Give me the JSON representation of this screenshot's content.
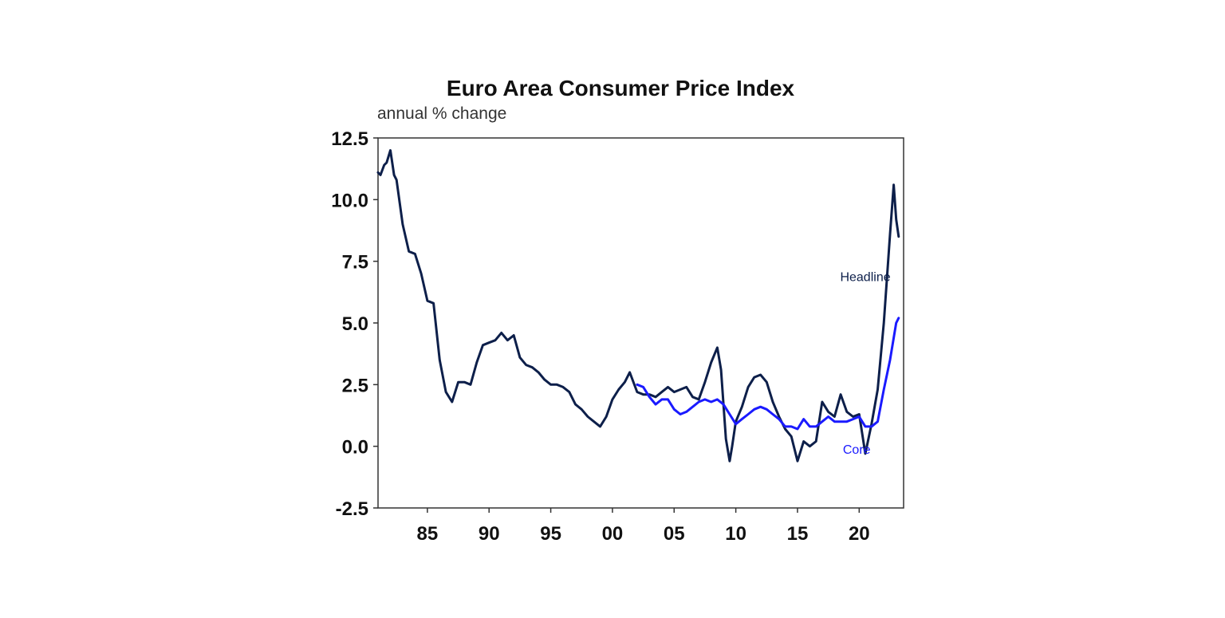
{
  "chart_data": {
    "type": "line",
    "title": "Euro Area Consumer Price Index",
    "subtitle": "annual % change",
    "xlabel": "",
    "ylabel": "",
    "ylim": [
      -2.5,
      12.5
    ],
    "xlim": [
      1981.0,
      2023.6
    ],
    "yticks": [
      -2.5,
      0.0,
      2.5,
      5.0,
      7.5,
      10.0,
      12.5
    ],
    "ytick_labels": [
      "-2.5",
      "0.0",
      "2.5",
      "5.0",
      "7.5",
      "10.0",
      "12.5"
    ],
    "xticks": [
      1985,
      1990,
      1995,
      2000,
      2005,
      2010,
      2015,
      2020
    ],
    "xtick_labels": [
      "85",
      "90",
      "95",
      "00",
      "05",
      "10",
      "15",
      "20"
    ],
    "grid": false,
    "series": [
      {
        "name": "Headline",
        "color": "#0d1f4a",
        "x": [
          1981.0,
          1981.2,
          1981.5,
          1981.7,
          1982.0,
          1982.3,
          1982.5,
          1983.0,
          1983.5,
          1984.0,
          1984.5,
          1985.0,
          1985.5,
          1986.0,
          1986.5,
          1987.0,
          1987.5,
          1988.0,
          1988.5,
          1989.0,
          1989.5,
          1990.0,
          1990.5,
          1991.0,
          1991.5,
          1992.0,
          1992.5,
          1993.0,
          1993.5,
          1994.0,
          1994.5,
          1995.0,
          1995.5,
          1996.0,
          1996.5,
          1997.0,
          1997.5,
          1998.0,
          1998.5,
          1999.0,
          1999.5,
          2000.0,
          2000.5,
          2001.0,
          2001.4,
          2002.0,
          2002.5,
          2003.0,
          2003.5,
          2004.0,
          2004.5,
          2005.0,
          2005.5,
          2006.0,
          2006.5,
          2007.0,
          2007.5,
          2008.0,
          2008.5,
          2008.8,
          2009.2,
          2009.5,
          2009.7,
          2010.0,
          2010.5,
          2011.0,
          2011.5,
          2012.0,
          2012.5,
          2013.0,
          2013.5,
          2014.0,
          2014.5,
          2015.0,
          2015.5,
          2016.0,
          2016.5,
          2017.0,
          2017.5,
          2018.0,
          2018.5,
          2019.0,
          2019.5,
          2020.0,
          2020.5,
          2021.0,
          2021.5,
          2022.0,
          2022.5,
          2022.8,
          2023.0,
          2023.2
        ],
        "values": [
          11.1,
          11.0,
          11.4,
          11.5,
          12.0,
          11.0,
          10.8,
          9.0,
          7.9,
          7.8,
          7.0,
          5.9,
          5.8,
          3.5,
          2.2,
          1.8,
          2.6,
          2.6,
          2.5,
          3.4,
          4.1,
          4.2,
          4.3,
          4.6,
          4.3,
          4.5,
          3.6,
          3.3,
          3.2,
          3.0,
          2.7,
          2.5,
          2.5,
          2.4,
          2.2,
          1.7,
          1.5,
          1.2,
          1.0,
          0.8,
          1.2,
          1.9,
          2.3,
          2.6,
          3.0,
          2.2,
          2.1,
          2.1,
          2.0,
          2.2,
          2.4,
          2.2,
          2.3,
          2.4,
          2.0,
          1.9,
          2.6,
          3.4,
          4.0,
          3.1,
          0.3,
          -0.6,
          0.0,
          1.0,
          1.6,
          2.4,
          2.8,
          2.9,
          2.6,
          1.8,
          1.2,
          0.7,
          0.4,
          -0.6,
          0.2,
          0.0,
          0.2,
          1.8,
          1.4,
          1.2,
          2.1,
          1.4,
          1.2,
          1.3,
          -0.3,
          0.9,
          2.3,
          5.0,
          8.6,
          10.6,
          9.2,
          8.5
        ]
      },
      {
        "name": "Core",
        "color": "#1a1aff",
        "x": [
          2002.0,
          2002.5,
          2003.0,
          2003.5,
          2004.0,
          2004.5,
          2005.0,
          2005.5,
          2006.0,
          2006.5,
          2007.0,
          2007.5,
          2008.0,
          2008.5,
          2009.0,
          2009.5,
          2010.0,
          2010.5,
          2011.0,
          2011.5,
          2012.0,
          2012.5,
          2013.0,
          2013.5,
          2014.0,
          2014.5,
          2015.0,
          2015.5,
          2016.0,
          2016.5,
          2017.0,
          2017.5,
          2018.0,
          2018.5,
          2019.0,
          2019.5,
          2020.0,
          2020.5,
          2021.0,
          2021.5,
          2022.0,
          2022.5,
          2023.0,
          2023.2
        ],
        "values": [
          2.5,
          2.4,
          2.0,
          1.7,
          1.9,
          1.9,
          1.5,
          1.3,
          1.4,
          1.6,
          1.8,
          1.9,
          1.8,
          1.9,
          1.7,
          1.3,
          0.9,
          1.1,
          1.3,
          1.5,
          1.6,
          1.5,
          1.3,
          1.1,
          0.8,
          0.8,
          0.7,
          1.1,
          0.8,
          0.8,
          1.0,
          1.2,
          1.0,
          1.0,
          1.0,
          1.1,
          1.2,
          0.8,
          0.8,
          1.0,
          2.3,
          3.5,
          5.0,
          5.2
        ]
      }
    ],
    "annotations": [
      {
        "text": "Headline",
        "x": 2020.5,
        "y": 6.7,
        "color": "#0d1f4a"
      },
      {
        "text": "Core",
        "x": 2019.8,
        "y": -0.3,
        "color": "#1a1aff"
      }
    ]
  }
}
